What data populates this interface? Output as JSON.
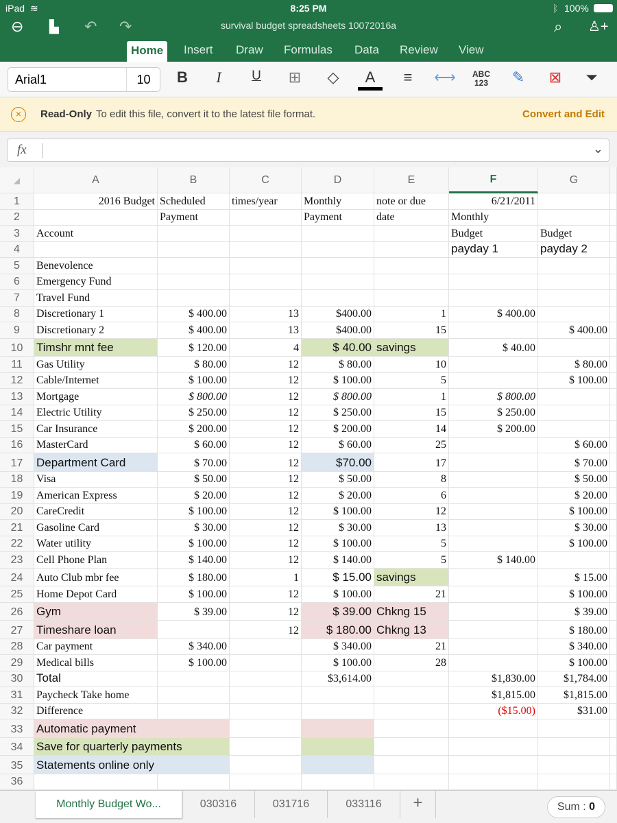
{
  "status": {
    "device": "iPad",
    "time": "8:25 PM",
    "battery": "100%"
  },
  "titlebar": {
    "title": "survival budget spreadsheets 10072016a",
    "icons": [
      "back-icon",
      "file-icon",
      "undo-icon",
      "redo-icon",
      "search-icon",
      "add-person-icon"
    ]
  },
  "tabs": [
    "Home",
    "Insert",
    "Draw",
    "Formulas",
    "Data",
    "Review",
    "View"
  ],
  "ribbon": {
    "font": "Arial1",
    "size": "10",
    "abc": "ABC",
    "n123": "123"
  },
  "banner": {
    "title": "Read-Only",
    "message": "To edit this file, convert it to the latest file format.",
    "action": "Convert and Edit"
  },
  "formula_bar": {
    "fx": "fx",
    "value": ""
  },
  "columns": [
    "A",
    "B",
    "C",
    "D",
    "E",
    "F",
    "G"
  ],
  "selected_column": "F",
  "colors": {
    "pink": "#f2dcdb",
    "green": "#d8e4bc",
    "blue": "#dce6f1",
    "accent": "#217346",
    "negative": "#e00000"
  },
  "rows": [
    {
      "n": "1",
      "cells": [
        "2016 Budget",
        "Scheduled",
        "times/year",
        "Monthly",
        "note or due",
        "6/21/2011",
        ""
      ]
    },
    {
      "n": "2",
      "cells": [
        "",
        "Payment",
        "",
        "Payment",
        "date",
        "Monthly",
        ""
      ]
    },
    {
      "n": "3",
      "cells": [
        "Account",
        "",
        "",
        "",
        "",
        "Budget",
        "Budget"
      ]
    },
    {
      "n": "4",
      "cells": [
        "",
        "",
        "",
        "",
        "",
        "payday 1",
        "payday 2"
      ]
    },
    {
      "n": "5",
      "cells": [
        "Benevolence",
        "",
        "",
        "",
        "",
        "",
        ""
      ]
    },
    {
      "n": "6",
      "cells": [
        "Emergency Fund",
        "",
        "",
        "",
        "",
        "",
        ""
      ]
    },
    {
      "n": "7",
      "cells": [
        "Travel Fund",
        "",
        "",
        "",
        "",
        "",
        ""
      ]
    },
    {
      "n": "8",
      "cells": [
        "Discretionary 1",
        "$ 400.00",
        "13",
        "$400.00",
        "1",
        "$ 400.00",
        ""
      ]
    },
    {
      "n": "9",
      "cells": [
        "Discretionary 2",
        "$ 400.00",
        "13",
        "$400.00",
        "15",
        "",
        "$ 400.00"
      ]
    },
    {
      "n": "10",
      "cells": [
        "Timshr mnt fee",
        "$ 120.00",
        "4",
        "$ 40.00",
        "savings",
        "$ 40.00",
        ""
      ],
      "fills": {
        "0": "green",
        "3": "green",
        "4": "green"
      }
    },
    {
      "n": "11",
      "cells": [
        "Gas Utility",
        "$ 80.00",
        "12",
        "$ 80.00",
        "10",
        "",
        "$ 80.00"
      ]
    },
    {
      "n": "12",
      "cells": [
        "Cable/Internet",
        "$ 100.00",
        "12",
        "$ 100.00",
        "5",
        "",
        "$ 100.00"
      ]
    },
    {
      "n": "13",
      "cells": [
        "Mortgage",
        "$ 800.00",
        "12",
        "$ 800.00",
        "1",
        "$ 800.00",
        ""
      ]
    },
    {
      "n": "14",
      "cells": [
        "Electric Utility",
        "$ 250.00",
        "12",
        "$ 250.00",
        "15",
        "$ 250.00",
        ""
      ]
    },
    {
      "n": "15",
      "cells": [
        "Car Insurance",
        "$ 200.00",
        "12",
        "$ 200.00",
        "14",
        "$ 200.00",
        ""
      ]
    },
    {
      "n": "16",
      "cells": [
        "MasterCard",
        "$ 60.00",
        "12",
        "$ 60.00",
        "25",
        "",
        "$ 60.00"
      ]
    },
    {
      "n": "17",
      "cells": [
        "Department Card",
        "$ 70.00",
        "12",
        "$70.00",
        "17",
        "",
        "$ 70.00"
      ],
      "fills": {
        "0": "blue",
        "3": "blue"
      }
    },
    {
      "n": "18",
      "cells": [
        "Visa",
        "$ 50.00",
        "12",
        "$ 50.00",
        "8",
        "",
        "$ 50.00"
      ]
    },
    {
      "n": "19",
      "cells": [
        "American Express",
        "$ 20.00",
        "12",
        "$ 20.00",
        "6",
        "",
        "$ 20.00"
      ]
    },
    {
      "n": "20",
      "cells": [
        "CareCredit",
        "$ 100.00",
        "12",
        "$ 100.00",
        "12",
        "",
        "$ 100.00"
      ]
    },
    {
      "n": "21",
      "cells": [
        "Gasoline Card",
        "$ 30.00",
        "12",
        "$ 30.00",
        "13",
        "",
        "$ 30.00"
      ]
    },
    {
      "n": "22",
      "cells": [
        "Water utility",
        "$ 100.00",
        "12",
        "$ 100.00",
        "5",
        "",
        "$ 100.00"
      ]
    },
    {
      "n": "23",
      "cells": [
        "Cell Phone Plan",
        "$ 140.00",
        "12",
        "$ 140.00",
        "5",
        "$ 140.00",
        ""
      ]
    },
    {
      "n": "24",
      "cells": [
        "Auto Club mbr fee",
        "$ 180.00",
        "1",
        "$ 15.00",
        "savings",
        "",
        "$ 15.00"
      ],
      "fills": {
        "4": "green"
      }
    },
    {
      "n": "25",
      "cells": [
        "Home Depot Card",
        "$ 100.00",
        "12",
        "$ 100.00",
        "21",
        "",
        "$ 100.00"
      ]
    },
    {
      "n": "26",
      "cells": [
        "Gym",
        "$ 39.00",
        "12",
        "$ 39.00",
        "Chkng 15",
        "",
        "$ 39.00"
      ],
      "fills": {
        "0": "pink",
        "3": "pink",
        "4": "pink"
      }
    },
    {
      "n": "27",
      "cells": [
        "Timeshare loan",
        "",
        "12",
        "$ 180.00",
        "Chkng 13",
        "",
        "$ 180.00"
      ],
      "fills": {
        "0": "pink",
        "3": "pink",
        "4": "pink"
      }
    },
    {
      "n": "28",
      "cells": [
        "Car payment",
        "$ 340.00",
        "",
        "$ 340.00",
        "21",
        "",
        "$ 340.00"
      ]
    },
    {
      "n": "29",
      "cells": [
        "Medical bills",
        "$ 100.00",
        "",
        "$ 100.00",
        "28",
        "",
        "$ 100.00"
      ]
    },
    {
      "n": "30",
      "cells": [
        "Total",
        "",
        "",
        "$3,614.00",
        "",
        "$1,830.00",
        "$1,784.00"
      ]
    },
    {
      "n": "31",
      "cells": [
        "Paycheck Take home",
        "",
        "",
        "",
        "",
        "$1,815.00",
        "$1,815.00"
      ]
    },
    {
      "n": "32",
      "cells": [
        "Difference",
        "",
        "",
        "",
        "",
        "($15.00)",
        "$31.00"
      ]
    },
    {
      "n": "33",
      "cells": [
        "Automatic payment",
        "",
        "",
        "",
        "",
        "",
        ""
      ],
      "fills": {
        "0": "pink",
        "1": "pink",
        "3": "pink"
      }
    },
    {
      "n": "34",
      "cells": [
        "Save for quarterly payments",
        "",
        "",
        "",
        "",
        "",
        ""
      ],
      "fills": {
        "0": "green",
        "1": "green",
        "3": "green"
      }
    },
    {
      "n": "35",
      "cells": [
        "Statements online only",
        "",
        "",
        "",
        "",
        "",
        ""
      ],
      "fills": {
        "0": "blue",
        "1": "blue",
        "3": "blue"
      }
    },
    {
      "n": "36",
      "cells": [
        "",
        "",
        "",
        "",
        "",
        "",
        ""
      ]
    }
  ],
  "sheets": [
    "Monthly Budget Wo...",
    "030316",
    "031716",
    "033116"
  ],
  "add_sheet": "+",
  "sum": {
    "label": "Sum : ",
    "value": "0"
  }
}
